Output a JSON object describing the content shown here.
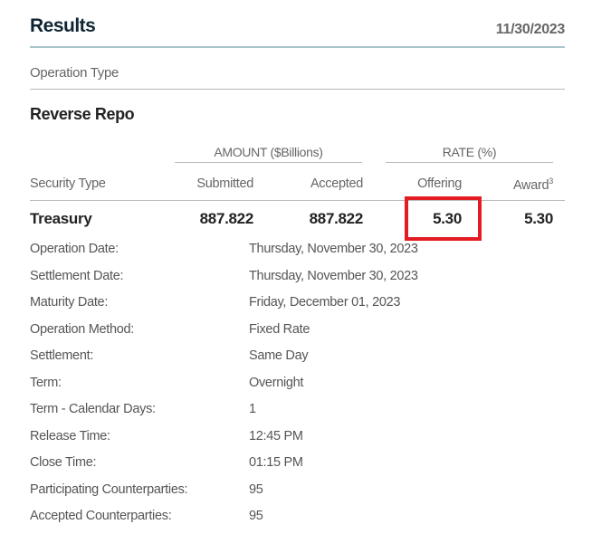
{
  "header": {
    "title": "Results",
    "date": "11/30/2023"
  },
  "operation_type_label": "Operation Type",
  "operation_type": "Reverse Repo",
  "table": {
    "group_amount": "AMOUNT ($Billions)",
    "group_rate": "RATE (%)",
    "columns": {
      "security_type": "Security Type",
      "submitted": "Submitted",
      "accepted": "Accepted",
      "offering": "Offering",
      "award": "Award",
      "award_footnote": "3"
    },
    "row": {
      "security_type": "Treasury",
      "submitted": "887.822",
      "accepted": "887.822",
      "offering": "5.30",
      "award": "5.30"
    },
    "highlight_color": "#e31b23"
  },
  "details": [
    {
      "label": "Operation Date:",
      "value": "Thursday, November 30, 2023"
    },
    {
      "label": "Settlement Date:",
      "value": "Thursday, November 30, 2023"
    },
    {
      "label": "Maturity Date:",
      "value": "Friday, December 01, 2023"
    },
    {
      "label": "Operation Method:",
      "value": "Fixed Rate"
    },
    {
      "label": "Settlement:",
      "value": "Same Day"
    },
    {
      "label": "Term:",
      "value": "Overnight"
    },
    {
      "label": "Term - Calendar Days:",
      "value": "1"
    },
    {
      "label": "Release Time:",
      "value": "12:45 PM"
    },
    {
      "label": "Close Time:",
      "value": "01:15 PM"
    },
    {
      "label": "Participating Counterparties:",
      "value": "95"
    },
    {
      "label": "Accepted Counterparties:",
      "value": "95"
    }
  ]
}
